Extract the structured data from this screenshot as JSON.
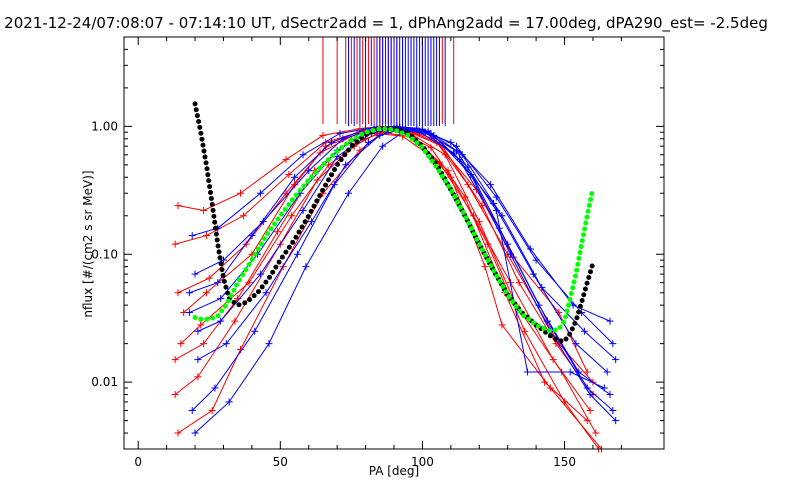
{
  "chart_data": {
    "type": "line",
    "title": "2021-12-24/07:08:07 - 07:14:10 UT, dSectr2add = 1, dPhAng2add = 17.00deg, dPA290_est=  -2.5deg",
    "xlabel": "PA [deg]",
    "ylabel": "nflux [#/(cm2 s sr MeV)]",
    "xlim": [
      -5,
      185
    ],
    "ylim": [
      0.003,
      5
    ],
    "yscale": "log",
    "grid": false,
    "xticks": [
      0,
      50,
      100,
      150
    ],
    "xtick_labels": [
      "0",
      "50",
      "100",
      "150"
    ],
    "yticks": [
      0.01,
      0.1,
      1
    ],
    "ytick_labels": [
      "0.01",
      "0.10",
      "1.00"
    ],
    "colors": {
      "red_series": "#ff0000",
      "blue_series": "#0000ff",
      "black_fit": "#000000",
      "green_fit": "#00ff00",
      "axes": "#000000"
    },
    "series": [
      {
        "color": "red",
        "style": "line+plus",
        "x": [
          14,
          23,
          36,
          52,
          65,
          78,
          85,
          92,
          104,
          119,
          132,
          148,
          158
        ],
        "y": [
          0.24,
          0.22,
          0.3,
          0.55,
          0.85,
          0.96,
          1.0,
          0.98,
          0.8,
          0.32,
          0.095,
          0.035,
          0.012
        ]
      },
      {
        "color": "red",
        "style": "line+plus",
        "x": [
          13,
          24,
          37,
          53,
          66,
          79,
          87,
          94,
          107,
          121,
          134,
          147,
          160
        ],
        "y": [
          0.12,
          0.14,
          0.2,
          0.42,
          0.75,
          0.92,
          0.97,
          0.93,
          0.7,
          0.24,
          0.06,
          0.02,
          0.008
        ]
      },
      {
        "color": "red",
        "style": "line+plus",
        "x": [
          14,
          25,
          38,
          52,
          64,
          77,
          86,
          95,
          108,
          120,
          133,
          149,
          161
        ],
        "y": [
          0.05,
          0.065,
          0.12,
          0.3,
          0.62,
          0.88,
          0.95,
          0.9,
          0.6,
          0.18,
          0.04,
          0.012,
          0.004
        ]
      },
      {
        "color": "red",
        "style": "line+plus",
        "x": [
          15,
          22,
          39,
          54,
          67,
          80,
          88,
          96,
          109,
          123,
          136,
          150,
          162
        ],
        "y": [
          0.02,
          0.028,
          0.06,
          0.2,
          0.5,
          0.8,
          0.93,
          0.86,
          0.45,
          0.12,
          0.025,
          0.007,
          0.003
        ]
      },
      {
        "color": "red",
        "style": "line+plus",
        "x": [
          13,
          21,
          34,
          50,
          63,
          76,
          84,
          93,
          106,
          118,
          131,
          146,
          159
        ],
        "y": [
          0.008,
          0.011,
          0.03,
          0.12,
          0.38,
          0.7,
          0.88,
          0.84,
          0.52,
          0.2,
          0.06,
          0.015,
          0.006
        ]
      },
      {
        "color": "red",
        "style": "line+plus",
        "x": [
          14,
          26,
          36,
          51,
          65,
          78,
          86,
          97,
          110,
          122,
          128,
          145,
          163
        ],
        "y": [
          0.004,
          0.006,
          0.018,
          0.08,
          0.3,
          0.65,
          0.9,
          0.82,
          0.4,
          0.08,
          0.028,
          0.009,
          0.003
        ]
      },
      {
        "color": "red",
        "style": "line+plus",
        "x": [
          16,
          24,
          40,
          55,
          66,
          79,
          87,
          94,
          105,
          116,
          130,
          148,
          160
        ],
        "y": [
          0.035,
          0.05,
          0.1,
          0.35,
          0.7,
          0.9,
          0.98,
          0.95,
          0.75,
          0.35,
          0.1,
          0.02,
          0.01
        ]
      },
      {
        "color": "red",
        "style": "line+plus",
        "x": [
          13,
          23,
          35,
          49,
          62,
          75,
          85,
          92,
          103,
          115,
          129,
          143,
          158
        ],
        "y": [
          0.015,
          0.02,
          0.045,
          0.15,
          0.45,
          0.78,
          0.96,
          0.92,
          0.68,
          0.28,
          0.05,
          0.01,
          0.005
        ]
      },
      {
        "color": "blue",
        "style": "line+plus",
        "x": [
          19,
          28,
          43,
          58,
          71,
          83,
          91,
          100,
          112,
          126,
          140,
          156,
          167
        ],
        "y": [
          0.14,
          0.16,
          0.3,
          0.6,
          0.88,
          0.98,
          1.0,
          0.95,
          0.7,
          0.28,
          0.09,
          0.035,
          0.02
        ]
      },
      {
        "color": "blue",
        "style": "line+plus",
        "x": [
          20,
          30,
          44,
          60,
          72,
          84,
          92,
          102,
          114,
          128,
          142,
          157,
          168
        ],
        "y": [
          0.07,
          0.09,
          0.18,
          0.45,
          0.8,
          0.96,
          0.99,
          0.92,
          0.6,
          0.2,
          0.055,
          0.025,
          0.015
        ]
      },
      {
        "color": "blue",
        "style": "line+plus",
        "x": [
          18,
          29,
          42,
          57,
          70,
          82,
          90,
          101,
          113,
          127,
          141,
          155,
          166
        ],
        "y": [
          0.035,
          0.045,
          0.1,
          0.3,
          0.65,
          0.92,
          0.98,
          0.9,
          0.55,
          0.16,
          0.04,
          0.012,
          0.008
        ]
      },
      {
        "color": "blue",
        "style": "line+plus",
        "x": [
          21,
          31,
          45,
          61,
          73,
          85,
          93,
          103,
          116,
          130,
          144,
          158,
          167
        ],
        "y": [
          0.015,
          0.02,
          0.05,
          0.18,
          0.5,
          0.85,
          0.96,
          0.88,
          0.48,
          0.12,
          0.03,
          0.009,
          0.006
        ]
      },
      {
        "color": "blue",
        "style": "line+plus",
        "x": [
          19,
          27,
          41,
          56,
          69,
          81,
          89,
          99,
          111,
          125,
          139,
          154,
          165
        ],
        "y": [
          0.006,
          0.009,
          0.025,
          0.1,
          0.35,
          0.75,
          0.94,
          0.9,
          0.62,
          0.25,
          0.07,
          0.02,
          0.012
        ]
      },
      {
        "color": "blue",
        "style": "line+plus",
        "x": [
          20,
          32,
          46,
          59,
          74,
          86,
          94,
          104,
          117,
          131,
          145,
          159,
          168
        ],
        "y": [
          0.004,
          0.007,
          0.02,
          0.08,
          0.3,
          0.7,
          0.93,
          0.85,
          0.42,
          0.1,
          0.025,
          0.008,
          0.005
        ]
      },
      {
        "color": "blue",
        "style": "line+plus",
        "x": [
          18,
          28,
          40,
          55,
          68,
          80,
          90,
          98,
          110,
          124,
          138,
          153,
          166
        ],
        "y": [
          0.05,
          0.06,
          0.14,
          0.4,
          0.75,
          0.95,
          1.0,
          0.97,
          0.75,
          0.35,
          0.11,
          0.04,
          0.03
        ]
      },
      {
        "color": "blue",
        "style": "line+plus",
        "x": [
          21,
          29,
          43,
          58,
          70,
          82,
          91,
          100,
          112,
          126,
          137,
          152,
          164
        ],
        "y": [
          0.025,
          0.03,
          0.07,
          0.22,
          0.58,
          0.88,
          0.97,
          0.93,
          0.64,
          0.22,
          0.012,
          0.012,
          0.009
        ]
      }
    ],
    "fits": [
      {
        "color": "black",
        "style": "thick-dots",
        "x": [
          20,
          22,
          24,
          26,
          28,
          30,
          32,
          35,
          38,
          42,
          46,
          50,
          55,
          60,
          65,
          70,
          75,
          80,
          85,
          90,
          95,
          100,
          105,
          110,
          115,
          120,
          125,
          130,
          135,
          140,
          145,
          148,
          150,
          152,
          154,
          156,
          158,
          160
        ],
        "y": [
          1.5,
          0.9,
          0.5,
          0.25,
          0.12,
          0.065,
          0.045,
          0.04,
          0.042,
          0.05,
          0.065,
          0.09,
          0.13,
          0.2,
          0.32,
          0.5,
          0.7,
          0.86,
          0.96,
          0.96,
          0.88,
          0.7,
          0.5,
          0.32,
          0.2,
          0.12,
          0.075,
          0.048,
          0.035,
          0.028,
          0.023,
          0.021,
          0.021,
          0.024,
          0.03,
          0.042,
          0.06,
          0.085
        ]
      },
      {
        "color": "green",
        "style": "thick-dots",
        "x": [
          20,
          22,
          25,
          28,
          31,
          35,
          40,
          45,
          50,
          55,
          60,
          65,
          70,
          75,
          80,
          85,
          90,
          95,
          100,
          105,
          110,
          115,
          120,
          125,
          130,
          135,
          140,
          145,
          148,
          150,
          152,
          154,
          156,
          158,
          160
        ],
        "y": [
          0.032,
          0.031,
          0.031,
          0.033,
          0.04,
          0.06,
          0.09,
          0.14,
          0.2,
          0.28,
          0.38,
          0.5,
          0.64,
          0.78,
          0.9,
          0.96,
          0.94,
          0.85,
          0.68,
          0.48,
          0.32,
          0.2,
          0.12,
          0.075,
          0.048,
          0.034,
          0.028,
          0.025,
          0.026,
          0.03,
          0.045,
          0.07,
          0.12,
          0.2,
          0.33
        ]
      }
    ],
    "upper_spikes": {
      "color_red": "red",
      "color_blue": "blue",
      "x_red": [
        65,
        70,
        73,
        75,
        77,
        79,
        81,
        83,
        85,
        86,
        88,
        89,
        91,
        93,
        96,
        100,
        103,
        107,
        111
      ],
      "x_blue": [
        74,
        76,
        78,
        80,
        82,
        84,
        85,
        86,
        87,
        88,
        89,
        90,
        91,
        92,
        93,
        94,
        95,
        96,
        97,
        98,
        99,
        100,
        101,
        102,
        103,
        104,
        105,
        106,
        108
      ]
    }
  }
}
